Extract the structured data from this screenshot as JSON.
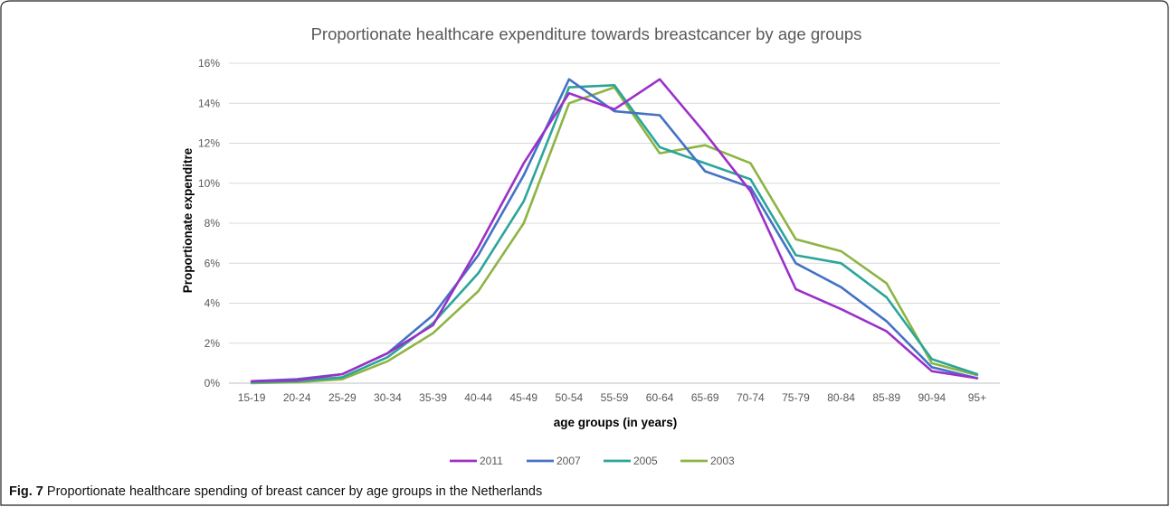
{
  "figure": {
    "label": "Fig. 7",
    "caption": "Proportionate healthcare spending of breast cancer by age groups in the Netherlands"
  },
  "chart_data": {
    "type": "line",
    "title": "Proportionate healthcare expenditure towards breastcancer by age groups",
    "xlabel": "age groups (in years)",
    "ylabel": "Proportionate expenditre",
    "categories": [
      "15-19",
      "20-24",
      "25-29",
      "30-34",
      "35-39",
      "40-44",
      "45-49",
      "50-54",
      "55-59",
      "60-64",
      "65-69",
      "70-74",
      "75-79",
      "80-84",
      "85-89",
      "90-94",
      "95+"
    ],
    "ylim": [
      0,
      16
    ],
    "yticks": [
      0,
      2,
      4,
      6,
      8,
      10,
      12,
      14,
      16
    ],
    "ytick_labels": [
      "0%",
      "2%",
      "4%",
      "6%",
      "8%",
      "10%",
      "12%",
      "14%",
      "16%"
    ],
    "grid": true,
    "legend_position": "bottom",
    "series": [
      {
        "name": "2011",
        "color": "#9B30C8",
        "values": [
          0.1,
          0.15,
          0.45,
          1.5,
          2.9,
          6.8,
          11.0,
          14.5,
          13.7,
          15.2,
          12.5,
          9.6,
          4.7,
          3.7,
          2.6,
          0.6,
          0.25
        ]
      },
      {
        "name": "2007",
        "color": "#4472C4",
        "values": [
          0.1,
          0.2,
          0.45,
          1.5,
          3.4,
          6.4,
          10.4,
          15.2,
          13.6,
          13.4,
          10.6,
          9.8,
          6.0,
          4.8,
          3.1,
          0.8,
          0.25
        ]
      },
      {
        "name": "2005",
        "color": "#2BA59A",
        "values": [
          0.05,
          0.1,
          0.3,
          1.3,
          3.0,
          5.5,
          9.1,
          14.8,
          14.9,
          11.8,
          11.0,
          10.2,
          6.4,
          6.0,
          4.3,
          1.2,
          0.45
        ]
      },
      {
        "name": "2003",
        "color": "#8DB443",
        "values": [
          0.0,
          0.05,
          0.2,
          1.1,
          2.5,
          4.6,
          8.0,
          14.0,
          14.8,
          11.5,
          11.9,
          11.0,
          7.2,
          6.6,
          5.0,
          1.0,
          0.4
        ]
      }
    ]
  }
}
